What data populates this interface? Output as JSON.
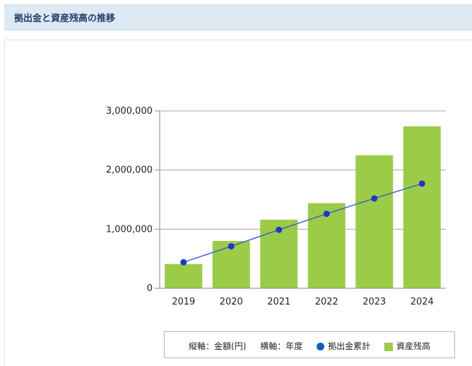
{
  "header": {
    "title": "拠出金と資産残高の推移"
  },
  "legend": {
    "y_axis_note": "縦軸：金額(円)",
    "x_axis_note": "横軸：年度",
    "contribution_label": "拠出金累計",
    "balance_label": "資産残高"
  },
  "chart_data": {
    "type": "bar",
    "categories": [
      "2019",
      "2020",
      "2021",
      "2022",
      "2023",
      "2024"
    ],
    "series": [
      {
        "name": "資産残高",
        "type": "bar",
        "color": "#9ccc47",
        "values": [
          410000,
          800000,
          1160000,
          1440000,
          2250000,
          2740000
        ]
      },
      {
        "name": "拠出金累計",
        "type": "line",
        "color": "#2233cc",
        "line_color": "#3366cc",
        "values": [
          440000,
          710000,
          990000,
          1260000,
          1520000,
          1770000
        ]
      }
    ],
    "ylim": [
      0,
      3000000
    ],
    "yticks": [
      0,
      1000000,
      2000000,
      3000000
    ],
    "ytick_labels": [
      "0",
      "1,000,000",
      "2,000,000",
      "3,000,000"
    ],
    "xlabel": "",
    "ylabel": "",
    "grid": true,
    "legend_position": "bottom-right"
  }
}
